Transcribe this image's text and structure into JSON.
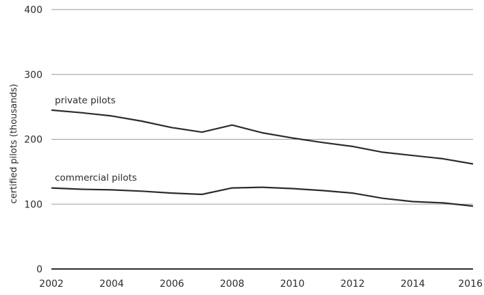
{
  "chart_data": {
    "type": "line",
    "ylabel": "certified pilots (thousands)",
    "xlim": [
      2002,
      2016
    ],
    "ylim": [
      0,
      400
    ],
    "x_ticks": [
      2002,
      2004,
      2006,
      2008,
      2010,
      2012,
      2014,
      2016
    ],
    "y_ticks": [
      0,
      100,
      200,
      300,
      400
    ],
    "grid": true,
    "line_color": "#2b2b2b",
    "grid_color": "#9a9a9a",
    "series": [
      {
        "name": "private pilots",
        "x": [
          2002,
          2003,
          2004,
          2005,
          2006,
          2007,
          2008,
          2009,
          2010,
          2011,
          2012,
          2013,
          2014,
          2015,
          2016
        ],
        "values": [
          245,
          241,
          236,
          228,
          218,
          211,
          222,
          210,
          202,
          195,
          189,
          180,
          175,
          170,
          162
        ]
      },
      {
        "name": "commercial pilots",
        "x": [
          2002,
          2003,
          2004,
          2005,
          2006,
          2007,
          2008,
          2009,
          2010,
          2011,
          2012,
          2013,
          2014,
          2015,
          2016
        ],
        "values": [
          125,
          123,
          122,
          120,
          117,
          115,
          125,
          126,
          124,
          121,
          117,
          109,
          104,
          102,
          97
        ]
      }
    ]
  }
}
